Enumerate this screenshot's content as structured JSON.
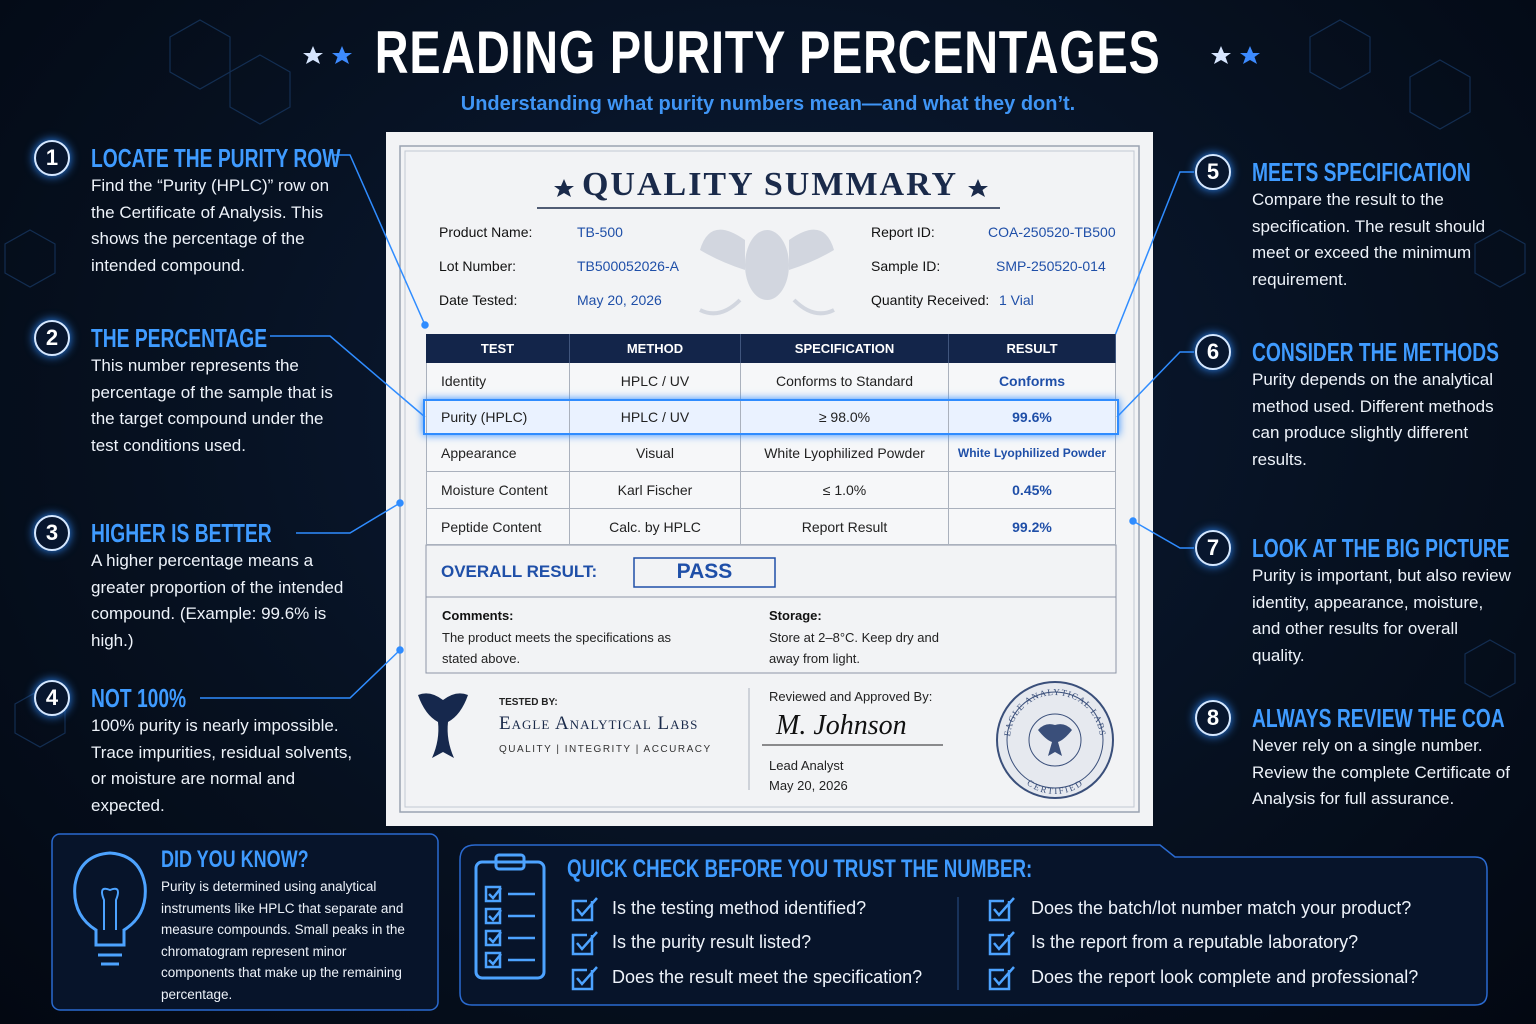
{
  "header": {
    "title": "READING PURITY PERCENTAGES",
    "subtitle": "Understanding what purity numbers mean—and what they don’t."
  },
  "steps": [
    {
      "number": "1",
      "title": "LOCATE THE PURITY ROW",
      "text": "Find the “Purity (HPLC)” row on the Certificate of Analysis. This shows the percentage of the intended compound."
    },
    {
      "number": "2",
      "title": "THE PERCENTAGE",
      "text": "This number represents the percentage of the sample that is the target compound under the test conditions used."
    },
    {
      "number": "3",
      "title": "HIGHER IS BETTER",
      "text": "A higher percentage means a greater proportion of the intended compound. (Example: 99.6% is high.)"
    },
    {
      "number": "4",
      "title": "NOT 100%",
      "text": "100% purity is nearly impossible. Trace impurities, residual solvents, or moisture are normal and expected."
    },
    {
      "number": "5",
      "title": "MEETS SPECIFICATION",
      "text": "Compare the result to the specification. The result should meet or exceed the minimum requirement."
    },
    {
      "number": "6",
      "title": "CONSIDER THE METHODS",
      "text": "Purity depends on the analytical method used. Different methods can produce slightly different results."
    },
    {
      "number": "7",
      "title": "LOOK AT THE BIG PICTURE",
      "text": "Purity is important, but also review identity, appearance, moisture, and other results for overall quality."
    },
    {
      "number": "8",
      "title": "ALWAYS REVIEW THE COA",
      "text": "Never rely on a single number. Review the complete Certificate of Analysis for full assurance."
    }
  ],
  "certificate": {
    "title": "QUALITY SUMMARY",
    "fields": [
      {
        "label": "Product Name:",
        "value": "TB-500"
      },
      {
        "label": "Lot Number:",
        "value": "TB500052026-A"
      },
      {
        "label": "Date Tested:",
        "value": "May 20, 2026"
      },
      {
        "label": "Report ID:",
        "value": "COA-250520-TB500"
      },
      {
        "label": "Sample ID:",
        "value": "SMP-250520-014"
      },
      {
        "label": "Quantity Received:",
        "value": "1 Vial"
      }
    ],
    "table_headers": [
      "TEST",
      "METHOD",
      "SPECIFICATION",
      "RESULT"
    ],
    "rows": [
      [
        "Identity",
        "HPLC / UV",
        "Conforms to Standard",
        "Conforms"
      ],
      [
        "Purity (HPLC)",
        "HPLC / UV",
        "≥ 98.0%",
        "99.6%"
      ],
      [
        "Appearance",
        "Visual",
        "White Lyophilized Powder",
        "White Lyophilized Powder"
      ],
      [
        "Moisture Content",
        "Karl Fischer",
        "≤ 1.0%",
        "0.45%"
      ],
      [
        "Peptide Content",
        "Calc. by HPLC",
        "Report Result",
        "99.2%"
      ]
    ],
    "overall_label": "OVERALL RESULT:",
    "overall_value": "PASS",
    "comments_label": "Comments:",
    "comments_text": "The product meets the specifications as stated above.",
    "storage_label": "Storage:",
    "storage_text": "Store at 2–8°C. Keep dry and away from light.",
    "tested_by": "TESTED BY:",
    "lab_name": "Eagle Analytical Labs",
    "lab_tagline": "QUALITY | INTEGRITY | ACCURACY",
    "reviewed_label": "Reviewed and Approved By:",
    "signature": "M. Johnson",
    "signer_title": "Lead Analyst",
    "signer_date": "May 20, 2026",
    "seal_top": "EAGLE ANALYTICAL LABS",
    "seal_bottom": "CERTIFIED"
  },
  "did_you_know": {
    "title": "DID YOU KNOW?",
    "text": "Purity is determined using analytical instruments like HPLC that separate and measure compounds. Small peaks in the chromatogram represent minor components that make up the remaining percentage."
  },
  "quick_check": {
    "title": "QUICK CHECK BEFORE YOU TRUST THE NUMBER:",
    "items": [
      "Is the testing method identified?",
      "Is the purity result listed?",
      "Does the result meet the specification?",
      "Does the batch/lot number match your product?",
      "Is the report from a reputable laboratory?",
      "Does the report look complete and professional?"
    ]
  }
}
